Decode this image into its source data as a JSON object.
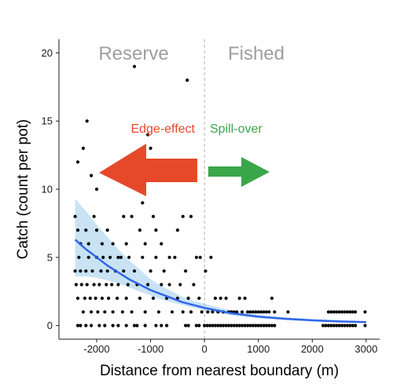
{
  "chart_data": {
    "type": "scatter",
    "xlabel": "Distance from nearest boundary (m)",
    "ylabel": "Catch (count per pot)",
    "xlim": [
      -2700,
      3250
    ],
    "ylim": [
      -1,
      21
    ],
    "xticks": [
      -2000,
      -1000,
      0,
      1000,
      2000,
      3000
    ],
    "yticks": [
      0,
      5,
      10,
      15,
      20
    ],
    "grid": false,
    "colors": {
      "points": "#000000",
      "fit_line": "#3366e8",
      "ribbon": "#bcdcf3",
      "boundary": "#b3b3b3",
      "edge_effect": "#e5492a",
      "spill_over": "#3aa64a",
      "region_text": "#9e9e9e"
    },
    "regions": {
      "left": "Reserve",
      "right": "Fished"
    },
    "boundary_x": 0,
    "annotations": {
      "edge_effect": "Edge-effect",
      "spill_over": "Spill-over"
    },
    "points": [
      [
        -2350,
        12
      ],
      [
        -2250,
        13
      ],
      [
        -2180,
        15
      ],
      [
        -2100,
        11
      ],
      [
        -2000,
        10
      ],
      [
        -1550,
        11
      ],
      [
        -1300,
        19
      ],
      [
        -1150,
        9
      ],
      [
        -1120,
        10
      ],
      [
        -1050,
        14
      ],
      [
        -1000,
        13
      ],
      [
        -400,
        8
      ],
      [
        -320,
        18
      ],
      [
        -250,
        8
      ],
      [
        -2400,
        8
      ],
      [
        -2350,
        7
      ],
      [
        -2300,
        6
      ],
      [
        -2200,
        7
      ],
      [
        -2150,
        6
      ],
      [
        -2050,
        8
      ],
      [
        -2000,
        7
      ],
      [
        -1900,
        6
      ],
      [
        -1800,
        7
      ],
      [
        -1700,
        6
      ],
      [
        -1600,
        5
      ],
      [
        -1500,
        8
      ],
      [
        -1450,
        6
      ],
      [
        -1350,
        8
      ],
      [
        -1200,
        7
      ],
      [
        -1100,
        6
      ],
      [
        -950,
        8
      ],
      [
        -900,
        7
      ],
      [
        -800,
        6
      ],
      [
        -650,
        5
      ],
      [
        -500,
        7
      ],
      [
        -2400,
        4
      ],
      [
        -2380,
        3
      ],
      [
        -2350,
        2
      ],
      [
        -2330,
        5
      ],
      [
        -2300,
        4
      ],
      [
        -2280,
        3
      ],
      [
        -2250,
        1
      ],
      [
        -2220,
        2
      ],
      [
        -2200,
        4
      ],
      [
        -2180,
        3
      ],
      [
        -2150,
        5
      ],
      [
        -2120,
        2
      ],
      [
        -2100,
        1
      ],
      [
        -2080,
        4
      ],
      [
        -2050,
        3
      ],
      [
        -2020,
        2
      ],
      [
        -2000,
        5
      ],
      [
        -1980,
        1
      ],
      [
        -1950,
        3
      ],
      [
        -1920,
        4
      ],
      [
        -1900,
        2
      ],
      [
        -1880,
        5
      ],
      [
        -1850,
        1
      ],
      [
        -1820,
        3
      ],
      [
        -1800,
        4
      ],
      [
        -1780,
        2
      ],
      [
        -1750,
        5
      ],
      [
        -1720,
        3
      ],
      [
        -1700,
        1
      ],
      [
        -1650,
        4
      ],
      [
        -1620,
        2
      ],
      [
        -1600,
        3
      ],
      [
        -1550,
        5
      ],
      [
        -1520,
        1
      ],
      [
        -1500,
        4
      ],
      [
        -1450,
        2
      ],
      [
        -1420,
        3
      ],
      [
        -1400,
        5
      ],
      [
        -1350,
        1
      ],
      [
        -1300,
        4
      ],
      [
        -1250,
        3
      ],
      [
        -1200,
        2
      ],
      [
        -1150,
        5
      ],
      [
        -1100,
        1
      ],
      [
        -1050,
        3
      ],
      [
        -1000,
        4
      ],
      [
        -950,
        2
      ],
      [
        -900,
        5
      ],
      [
        -850,
        1
      ],
      [
        -800,
        3
      ],
      [
        -750,
        4
      ],
      [
        -700,
        2
      ],
      [
        -650,
        3
      ],
      [
        -600,
        1
      ],
      [
        -550,
        5
      ],
      [
        -500,
        2
      ],
      [
        -450,
        3
      ],
      [
        -400,
        1
      ],
      [
        -350,
        4
      ],
      [
        -300,
        2
      ],
      [
        -250,
        1
      ],
      [
        -200,
        3
      ],
      [
        -150,
        5
      ],
      [
        -100,
        2
      ],
      [
        -50,
        1
      ],
      [
        -2350,
        0
      ],
      [
        -2300,
        0
      ],
      [
        -2200,
        0
      ],
      [
        -2100,
        0
      ],
      [
        -1950,
        0
      ],
      [
        -1850,
        0
      ],
      [
        -1700,
        0
      ],
      [
        -1600,
        0
      ],
      [
        -1450,
        0
      ],
      [
        -1300,
        0
      ],
      [
        -1250,
        0
      ],
      [
        -1100,
        0
      ],
      [
        -900,
        0
      ],
      [
        -800,
        0
      ],
      [
        -700,
        0
      ],
      [
        -350,
        0
      ],
      [
        -300,
        0
      ],
      [
        -150,
        0
      ],
      [
        -100,
        0
      ],
      [
        -80,
        5
      ],
      [
        20,
        4
      ],
      [
        60,
        1
      ],
      [
        120,
        5
      ],
      [
        150,
        1
      ],
      [
        200,
        2
      ],
      [
        250,
        1
      ],
      [
        300,
        2
      ],
      [
        350,
        1
      ],
      [
        400,
        2
      ],
      [
        450,
        1
      ],
      [
        500,
        1
      ],
      [
        550,
        1
      ],
      [
        600,
        1
      ],
      [
        650,
        2
      ],
      [
        700,
        1
      ],
      [
        750,
        2
      ],
      [
        800,
        1
      ],
      [
        850,
        1
      ],
      [
        900,
        1
      ],
      [
        950,
        1
      ],
      [
        1000,
        1
      ],
      [
        1050,
        1
      ],
      [
        1100,
        1
      ],
      [
        1150,
        1
      ],
      [
        1200,
        1
      ],
      [
        1250,
        2
      ],
      [
        1300,
        1
      ],
      [
        1550,
        1
      ],
      [
        0,
        0
      ],
      [
        50,
        0
      ],
      [
        100,
        0
      ],
      [
        150,
        0
      ],
      [
        200,
        0
      ],
      [
        250,
        0
      ],
      [
        300,
        0
      ],
      [
        350,
        0
      ],
      [
        400,
        0
      ],
      [
        450,
        0
      ],
      [
        500,
        0
      ],
      [
        550,
        0
      ],
      [
        600,
        0
      ],
      [
        650,
        0
      ],
      [
        700,
        0
      ],
      [
        750,
        0
      ],
      [
        800,
        0
      ],
      [
        850,
        0
      ],
      [
        900,
        0
      ],
      [
        950,
        0
      ],
      [
        1000,
        0
      ],
      [
        1050,
        0
      ],
      [
        1100,
        0
      ],
      [
        1150,
        0
      ],
      [
        1200,
        0
      ],
      [
        1250,
        0
      ],
      [
        1300,
        0
      ],
      [
        2300,
        1
      ],
      [
        2350,
        1
      ],
      [
        2400,
        1
      ],
      [
        2450,
        1
      ],
      [
        2500,
        1
      ],
      [
        2550,
        1
      ],
      [
        2600,
        1
      ],
      [
        2650,
        1
      ],
      [
        2700,
        1
      ],
      [
        2750,
        1
      ],
      [
        2800,
        1
      ],
      [
        2980,
        1
      ],
      [
        2200,
        0
      ],
      [
        2250,
        0
      ],
      [
        2300,
        0
      ],
      [
        2350,
        0
      ],
      [
        2400,
        0
      ],
      [
        2450,
        0
      ],
      [
        2500,
        0
      ],
      [
        2550,
        0
      ],
      [
        2600,
        0
      ],
      [
        2650,
        0
      ],
      [
        2700,
        0
      ],
      [
        2750,
        0
      ],
      [
        2800,
        0
      ],
      [
        2980,
        0
      ]
    ],
    "fit": {
      "x": [
        -2400,
        -2200,
        -2000,
        -1800,
        -1600,
        -1400,
        -1200,
        -1000,
        -800,
        -600,
        -400,
        -200,
        0,
        500,
        1000,
        1500,
        2000,
        2500,
        3000
      ],
      "y": [
        6.3,
        5.6,
        5.0,
        4.4,
        3.9,
        3.4,
        3.0,
        2.6,
        2.3,
        2.0,
        1.7,
        1.5,
        1.3,
        0.9,
        0.65,
        0.5,
        0.38,
        0.3,
        0.25
      ],
      "lower": [
        3.6,
        3.6,
        3.5,
        3.3,
        3.1,
        2.8,
        2.5,
        2.2,
        1.9,
        1.7,
        1.5,
        1.3,
        1.1,
        0.75,
        0.55,
        0.4,
        0.3,
        0.22,
        0.18
      ],
      "upper": [
        9.3,
        8.4,
        7.4,
        6.5,
        5.6,
        4.8,
        4.1,
        3.4,
        2.9,
        2.5,
        2.1,
        1.8,
        1.6,
        1.1,
        0.8,
        0.6,
        0.48,
        0.38,
        0.32
      ]
    }
  }
}
